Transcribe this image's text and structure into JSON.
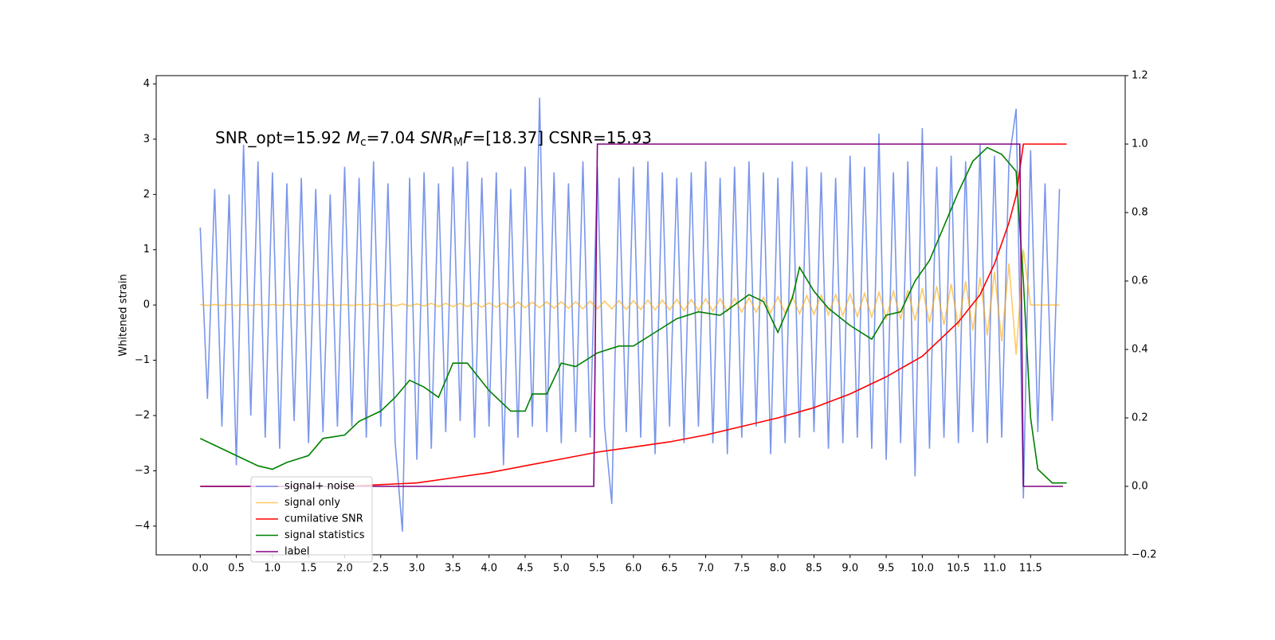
{
  "chart_data": {
    "type": "line",
    "annotation": [
      {
        "text": "SNR_opt=15.92 "
      },
      {
        "text": "M",
        "style": "italic"
      },
      {
        "text": "c",
        "style": "sub"
      },
      {
        "text": "=7.04    "
      },
      {
        "text": "SNR",
        "style": "italic"
      },
      {
        "text": "M",
        "style": "sub"
      },
      {
        "text": "F",
        "style": "italic"
      },
      {
        "text": "=[18.37] CSNR=15.93"
      }
    ],
    "ylabel": "Whitened strain",
    "xlim": [
      -0.61,
      12.81
    ],
    "ylim": [
      -4.52,
      4.15
    ],
    "y2lim": [
      -0.2,
      1.2
    ],
    "xticks": [
      {
        "value": 0,
        "label": "0.0"
      },
      0.5,
      {
        "value": 1,
        "label": "1.0"
      },
      1.5,
      {
        "value": 2,
        "label": "2.0"
      },
      2.5,
      {
        "value": 3,
        "label": "3.0"
      },
      3.5,
      {
        "value": 4,
        "label": "4.0"
      },
      4.5,
      {
        "value": 5,
        "label": "5.0"
      },
      5.5,
      {
        "value": 6,
        "label": "6.0"
      },
      6.5,
      {
        "value": 7,
        "label": "7.0"
      },
      7.5,
      {
        "value": 8,
        "label": "8.0"
      },
      8.5,
      {
        "value": 9,
        "label": "9.0"
      },
      9.5,
      {
        "value": 10,
        "label": "10.0"
      },
      10.5,
      {
        "value": 11,
        "label": "11.0"
      },
      11.5
    ],
    "yticks": [
      {
        "value": -4,
        "label": "−4"
      },
      {
        "value": -3,
        "label": "−3"
      },
      {
        "value": -2,
        "label": "−2"
      },
      {
        "value": -1,
        "label": "−1"
      },
      0,
      1,
      2,
      3,
      4
    ],
    "y2ticks": [
      {
        "value": -0.2,
        "label": "−0.2"
      },
      {
        "value": 0,
        "label": "0.0"
      },
      0.2,
      0.4,
      0.6,
      0.8,
      {
        "value": 1,
        "label": "1.0"
      },
      1.2
    ],
    "legend": "lower left",
    "series": [
      {
        "name": "signal+ noise",
        "color": "#4169e1",
        "opacity": 0.7,
        "x": [
          0,
          0.1,
          0.2,
          0.3,
          0.4,
          0.5,
          0.6,
          0.7,
          0.8,
          0.9,
          1,
          1.1,
          1.2,
          1.3,
          1.4,
          1.5,
          1.6,
          1.7,
          1.8,
          1.9,
          2,
          2.1,
          2.2,
          2.3,
          2.4,
          2.5,
          2.6,
          2.7,
          2.8,
          2.9,
          3,
          3.1,
          3.2,
          3.3,
          3.4,
          3.5,
          3.6,
          3.7,
          3.8,
          3.9,
          4,
          4.1,
          4.2,
          4.3,
          4.4,
          4.5,
          4.6,
          4.7,
          4.8,
          4.9,
          5,
          5.1,
          5.2,
          5.3,
          5.4,
          5.5,
          5.6,
          5.7,
          5.8,
          5.9,
          6,
          6.1,
          6.2,
          6.3,
          6.4,
          6.5,
          6.6,
          6.7,
          6.8,
          6.9,
          7,
          7.1,
          7.2,
          7.3,
          7.4,
          7.5,
          7.6,
          7.7,
          7.8,
          7.9,
          8,
          8.1,
          8.2,
          8.3,
          8.4,
          8.5,
          8.6,
          8.7,
          8.8,
          8.9,
          9,
          9.1,
          9.2,
          9.3,
          9.4,
          9.5,
          9.6,
          9.7,
          9.8,
          9.9,
          10,
          10.1,
          10.2,
          10.3,
          10.4,
          10.5,
          10.6,
          10.7,
          10.8,
          10.9,
          11,
          11.1,
          11.2,
          11.3,
          11.4,
          11.5,
          11.6,
          11.7,
          11.8,
          11.9
        ],
        "values": [
          1.4,
          -1.7,
          2.1,
          -2.2,
          2.0,
          -2.9,
          2.9,
          -2.0,
          2.6,
          -2.4,
          2.4,
          -2.6,
          2.2,
          -2.1,
          2.3,
          -2.5,
          2.1,
          -2.3,
          2.0,
          -2.2,
          2.5,
          -2.2,
          2.3,
          -2.4,
          2.6,
          -2.2,
          2.2,
          -2.5,
          -4.1,
          2.3,
          -2.8,
          2.4,
          -2.6,
          2.2,
          -2.3,
          2.5,
          -2.1,
          2.6,
          -2.4,
          2.3,
          -2.2,
          2.4,
          -2.9,
          2.1,
          -2.4,
          2.5,
          -2.2,
          3.75,
          -2.3,
          2.4,
          -2.5,
          2.2,
          -2.3,
          2.6,
          -2.4,
          2.5,
          -2.2,
          -3.6,
          2.3,
          -2.3,
          2.5,
          -2.4,
          2.6,
          -2.7,
          2.4,
          -2.2,
          2.3,
          -2.5,
          2.4,
          -2.2,
          2.6,
          -2.5,
          2.3,
          -2.7,
          2.5,
          -2.4,
          2.6,
          -2.2,
          2.4,
          -2.7,
          2.3,
          -2.5,
          2.6,
          -2.4,
          2.5,
          -2.3,
          2.4,
          -2.6,
          2.3,
          -2.5,
          2.7,
          -2.4,
          2.5,
          -2.6,
          3.1,
          -2.8,
          2.4,
          -2.5,
          2.6,
          -3.1,
          3.2,
          -2.6,
          2.5,
          -2.4,
          2.7,
          -2.5,
          2.6,
          -2.3,
          2.9,
          -2.5,
          2.7,
          -2.4,
          2.6,
          3.55,
          -3.5,
          2.8,
          -2.3,
          2.2,
          -2.1,
          2.1
        ]
      },
      {
        "name": "signal only",
        "color": "#ffa500",
        "opacity": 0.6,
        "x": [
          0,
          0.1,
          0.2,
          0.3,
          0.4,
          0.5,
          0.6,
          0.7,
          0.8,
          0.9,
          1,
          1.1,
          1.2,
          1.3,
          1.4,
          1.5,
          1.6,
          1.7,
          1.8,
          1.9,
          2,
          2.1,
          2.2,
          2.3,
          2.4,
          2.5,
          2.6,
          2.7,
          2.8,
          2.9,
          3,
          3.1,
          3.2,
          3.3,
          3.4,
          3.5,
          3.6,
          3.7,
          3.8,
          3.9,
          4,
          4.1,
          4.2,
          4.3,
          4.4,
          4.5,
          4.6,
          4.7,
          4.8,
          4.9,
          5,
          5.1,
          5.2,
          5.3,
          5.4,
          5.5,
          5.6,
          5.7,
          5.8,
          5.9,
          6,
          6.1,
          6.2,
          6.3,
          6.4,
          6.5,
          6.6,
          6.7,
          6.8,
          6.9,
          7,
          7.1,
          7.2,
          7.3,
          7.4,
          7.5,
          7.6,
          7.7,
          7.8,
          7.9,
          8,
          8.1,
          8.2,
          8.3,
          8.4,
          8.5,
          8.6,
          8.7,
          8.8,
          8.9,
          9,
          9.1,
          9.2,
          9.3,
          9.4,
          9.5,
          9.6,
          9.7,
          9.8,
          9.9,
          10,
          10.1,
          10.2,
          10.3,
          10.4,
          10.5,
          10.6,
          10.7,
          10.8,
          10.9,
          11,
          11.1,
          11.2,
          11.3,
          11.4,
          11.5,
          11.6,
          11.7,
          11.8,
          11.9
        ],
        "values": [
          0.01,
          -0.01,
          0.01,
          -0.01,
          0.01,
          -0.01,
          0.01,
          -0.01,
          0.01,
          -0.01,
          0.01,
          -0.01,
          0.01,
          -0.01,
          0.01,
          -0.01,
          0.01,
          -0.01,
          0.01,
          -0.01,
          0.01,
          -0.01,
          0.01,
          -0.01,
          0.02,
          -0.02,
          0.02,
          -0.02,
          0.02,
          -0.02,
          0.02,
          -0.02,
          0.03,
          -0.03,
          0.03,
          -0.03,
          0.03,
          -0.03,
          0.04,
          -0.04,
          0.04,
          -0.04,
          0.04,
          -0.05,
          0.05,
          -0.05,
          0.05,
          -0.05,
          0.06,
          -0.06,
          0.06,
          -0.06,
          0.06,
          -0.07,
          0.07,
          -0.07,
          0.07,
          -0.07,
          0.08,
          -0.08,
          0.08,
          -0.08,
          0.09,
          -0.09,
          0.09,
          -0.09,
          0.1,
          -0.1,
          0.1,
          -0.1,
          0.11,
          -0.11,
          0.11,
          -0.12,
          0.12,
          -0.13,
          0.13,
          -0.13,
          0.14,
          -0.14,
          0.15,
          -0.15,
          0.16,
          -0.16,
          0.17,
          -0.17,
          0.18,
          -0.18,
          0.19,
          -0.19,
          0.2,
          -0.21,
          0.21,
          -0.22,
          0.23,
          -0.24,
          0.25,
          -0.26,
          0.27,
          -0.28,
          0.3,
          -0.32,
          0.34,
          -0.36,
          0.38,
          -0.4,
          0.43,
          -0.46,
          0.5,
          -0.55,
          0.6,
          -0.66,
          0.75,
          -0.9,
          1.0,
          0,
          0,
          0,
          0,
          0
        ]
      },
      {
        "name": "cumilative SNR",
        "color": "#ff0000",
        "axis": "y2",
        "x": [
          0,
          2,
          2.5,
          3,
          3.5,
          4,
          4.5,
          5,
          5.5,
          6,
          6.5,
          7,
          7.5,
          8,
          8.5,
          9,
          9.5,
          10,
          10.5,
          10.8,
          11,
          11.2,
          11.3,
          11.4,
          11.5,
          12
        ],
        "values": [
          0,
          0,
          0.005,
          0.01,
          0.025,
          0.04,
          0.06,
          0.08,
          0.1,
          0.115,
          0.13,
          0.15,
          0.175,
          0.2,
          0.23,
          0.27,
          0.32,
          0.38,
          0.48,
          0.56,
          0.65,
          0.77,
          0.85,
          1.0,
          1.0,
          1.0
        ]
      },
      {
        "name": "signal statistics",
        "color": "#008000",
        "axis": "y2",
        "x": [
          0,
          0.2,
          0.4,
          0.6,
          0.8,
          1,
          1.2,
          1.5,
          1.7,
          2,
          2.2,
          2.5,
          2.7,
          2.9,
          3.1,
          3.3,
          3.5,
          3.7,
          4,
          4.3,
          4.5,
          4.6,
          4.8,
          5,
          5.2,
          5.5,
          5.8,
          6,
          6.3,
          6.6,
          6.9,
          7.2,
          7.4,
          7.6,
          7.8,
          8,
          8.2,
          8.3,
          8.5,
          8.7,
          9,
          9.3,
          9.5,
          9.7,
          9.9,
          10.1,
          10.3,
          10.5,
          10.7,
          10.9,
          11.1,
          11.3,
          11.4,
          11.5,
          11.6,
          11.8,
          12
        ],
        "values": [
          0.14,
          0.12,
          0.1,
          0.08,
          0.06,
          0.05,
          0.07,
          0.09,
          0.14,
          0.15,
          0.19,
          0.22,
          0.26,
          0.31,
          0.29,
          0.26,
          0.36,
          0.36,
          0.28,
          0.22,
          0.22,
          0.27,
          0.27,
          0.36,
          0.35,
          0.39,
          0.41,
          0.41,
          0.45,
          0.49,
          0.51,
          0.5,
          0.53,
          0.56,
          0.54,
          0.45,
          0.55,
          0.64,
          0.57,
          0.52,
          0.47,
          0.43,
          0.5,
          0.51,
          0.6,
          0.66,
          0.76,
          0.86,
          0.95,
          0.99,
          0.97,
          0.92,
          0.6,
          0.2,
          0.05,
          0.01,
          0.01
        ]
      },
      {
        "name": "label",
        "color": "#800080",
        "axis": "y2",
        "x": [
          0,
          5.45,
          5.5,
          11.35,
          11.4,
          11.95
        ],
        "values": [
          0,
          0,
          1,
          1,
          0,
          0
        ]
      }
    ]
  }
}
